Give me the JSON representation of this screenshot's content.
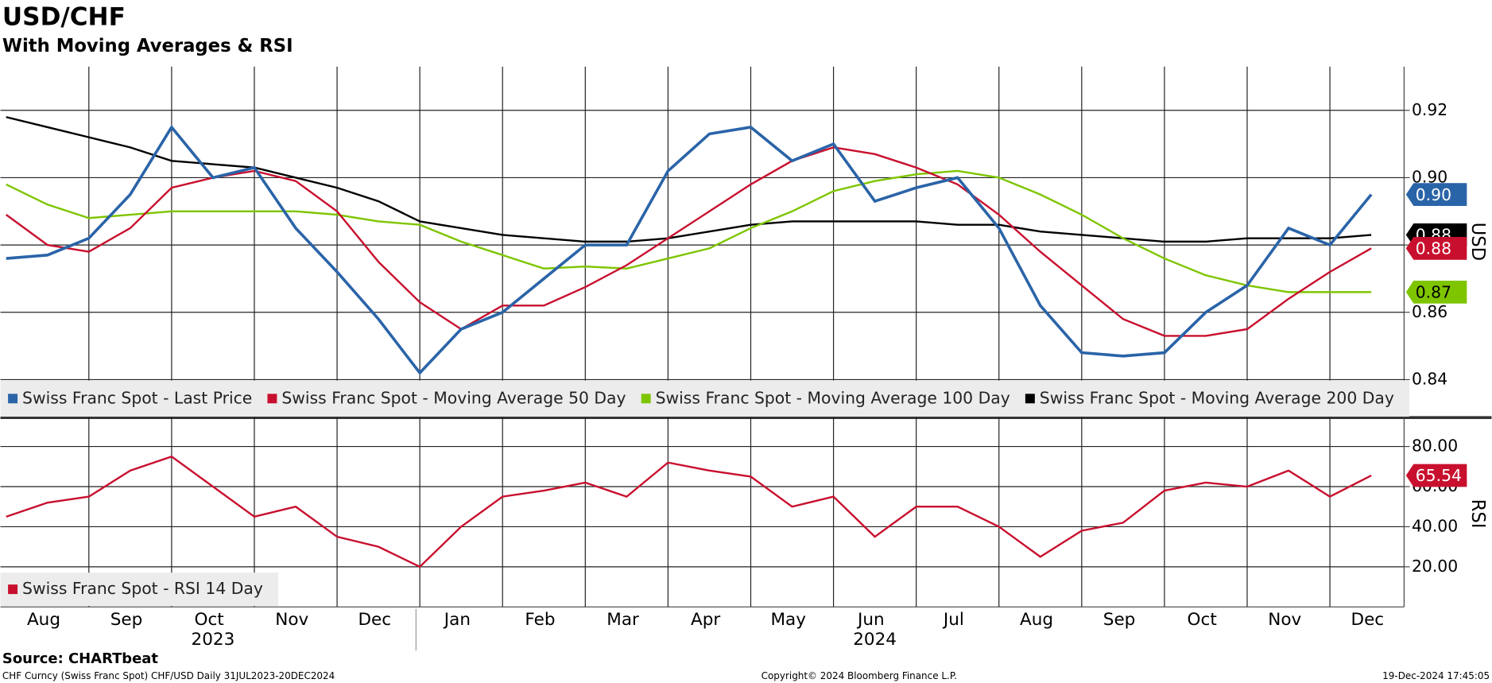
{
  "chart_data": [
    {
      "type": "line",
      "title": "USD/CHF",
      "subtitle": "With Moving Averages & RSI",
      "y_label": "USD",
      "ylim": [
        0.829,
        0.933
      ],
      "yticks": [
        0.84,
        0.86,
        0.88,
        {
          "value": 0.9,
          "label": "0.90"
        },
        0.92
      ],
      "grid": true,
      "legend": "bottom-left",
      "series": [
        {
          "name": "Swiss Franc Spot - Last Price",
          "color": "#2a64a8",
          "last_label": "0.90",
          "values": [
            0.876,
            0.877,
            0.882,
            0.895,
            0.915,
            0.9,
            0.903,
            0.885,
            0.872,
            0.858,
            0.842,
            0.855,
            0.86,
            0.87,
            0.88,
            0.88,
            0.902,
            0.913,
            0.915,
            0.905,
            0.91,
            0.893,
            0.897,
            0.9,
            0.885,
            0.862,
            0.848,
            0.847,
            0.848,
            0.86,
            0.868,
            0.885,
            0.88,
            0.895
          ]
        },
        {
          "name": "Swiss Franc Spot - Moving Average 50 Day",
          "color": "#c8102e",
          "last_label": "0.88",
          "values": [
            0.889,
            0.88,
            0.878,
            0.885,
            0.897,
            0.9,
            0.902,
            0.899,
            0.89,
            0.875,
            0.863,
            0.855,
            0.862,
            0.862,
            0.8675,
            0.874,
            0.882,
            0.89,
            0.898,
            0.905,
            0.909,
            0.907,
            0.903,
            0.898,
            0.889,
            0.878,
            0.868,
            0.858,
            0.853,
            0.853,
            0.855,
            0.864,
            0.872,
            0.879
          ]
        },
        {
          "name": "Swiss Franc Spot - Moving Average 100 Day",
          "color": "#7ec500",
          "last_label": "0.87",
          "values": [
            0.898,
            0.892,
            0.888,
            0.889,
            0.89,
            0.89,
            0.89,
            0.89,
            0.889,
            0.887,
            0.886,
            0.881,
            0.877,
            0.873,
            0.8736,
            0.873,
            0.876,
            0.879,
            0.885,
            0.89,
            0.896,
            0.899,
            0.901,
            0.902,
            0.9,
            0.895,
            0.889,
            0.882,
            0.876,
            0.871,
            0.868,
            0.866,
            0.866,
            0.866
          ]
        },
        {
          "name": "Swiss Franc Spot - Moving Average 200 Day",
          "color": "#000000",
          "last_label": "0.88",
          "values": [
            0.918,
            0.915,
            0.912,
            0.909,
            0.905,
            0.904,
            0.903,
            0.9,
            0.897,
            0.893,
            0.887,
            0.885,
            0.883,
            0.882,
            0.881,
            0.881,
            0.882,
            0.884,
            0.886,
            0.887,
            0.887,
            0.887,
            0.887,
            0.886,
            0.886,
            0.884,
            0.883,
            0.882,
            0.881,
            0.881,
            0.882,
            0.882,
            0.882,
            0.883
          ]
        }
      ]
    },
    {
      "type": "line",
      "y_label": "RSI",
      "ylim": [
        0,
        93
      ],
      "grid": true,
      "legend": "bottom-left",
      "yticks": [
        {
          "value": 20,
          "label": "20.00"
        },
        {
          "value": 40,
          "label": "40.00"
        },
        {
          "value": 60,
          "label": "60.00"
        },
        {
          "value": 80,
          "label": "80.00"
        }
      ],
      "categories": [
        null,
        "Aug",
        null,
        "Sep",
        null,
        "Oct",
        null,
        "Nov",
        null,
        "Dec",
        null,
        "Jan",
        null,
        "Feb",
        null,
        "Mar",
        null,
        "Apr",
        null,
        "May",
        null,
        "Jun",
        null,
        "Jul",
        null,
        "Aug",
        null,
        "Sep",
        null,
        "Oct",
        null,
        "Nov",
        null,
        "Dec"
      ],
      "year_labels": [
        "2023",
        "2024"
      ],
      "series": [
        {
          "name": "Swiss Franc Spot - RSI 14 Day",
          "color": "#c8102e",
          "last_label": "65.54",
          "values": [
            45,
            52,
            55,
            68,
            75,
            60,
            45,
            50,
            35,
            30,
            20,
            40,
            55,
            58,
            62,
            55,
            72,
            68,
            65,
            50,
            55,
            35,
            50,
            50,
            40,
            25,
            38,
            42,
            58,
            62,
            60,
            68,
            55,
            65.54
          ]
        }
      ]
    }
  ],
  "footer": {
    "source": "Source: CHARTbeat",
    "ticker": "CHF Curncy (Swiss Franc Spot) CHF/USD  Daily 31JUL2023-20DEC2024",
    "copyright": "Copyright© 2024 Bloomberg Finance L.P.",
    "timestamp": "19-Dec-2024 17:45:05"
  }
}
